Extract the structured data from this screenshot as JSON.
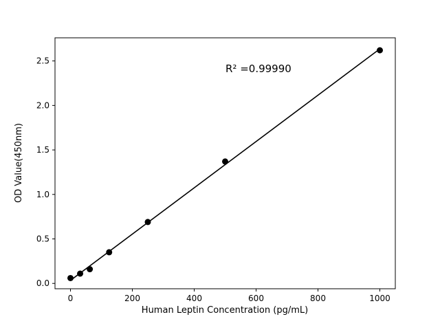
{
  "page": {
    "background_color": "#ffffff"
  },
  "chart_data": {
    "type": "scatter",
    "title": "",
    "xlabel": "Human Leptin Concentration (pg/mL)",
    "ylabel": "OD Value(450nm)",
    "annotation": "R² =0.99990",
    "x": [
      0,
      31.25,
      62.5,
      125,
      250,
      500,
      1000
    ],
    "y": [
      0.06,
      0.11,
      0.16,
      0.35,
      0.69,
      1.37,
      2.62
    ],
    "fit": "linear",
    "fit_x_range": [
      0,
      1000
    ],
    "x_ticks": [
      0,
      200,
      400,
      600,
      800,
      1000
    ],
    "y_ticks": [
      0.0,
      0.5,
      1.0,
      1.5,
      2.0,
      2.5
    ],
    "xlim": [
      -50,
      1050
    ],
    "ylim": [
      -0.06,
      2.76
    ],
    "marker_color": "#000000",
    "line_color": "#000000",
    "axes_color": "#000000",
    "grid": false,
    "legend": "none"
  }
}
